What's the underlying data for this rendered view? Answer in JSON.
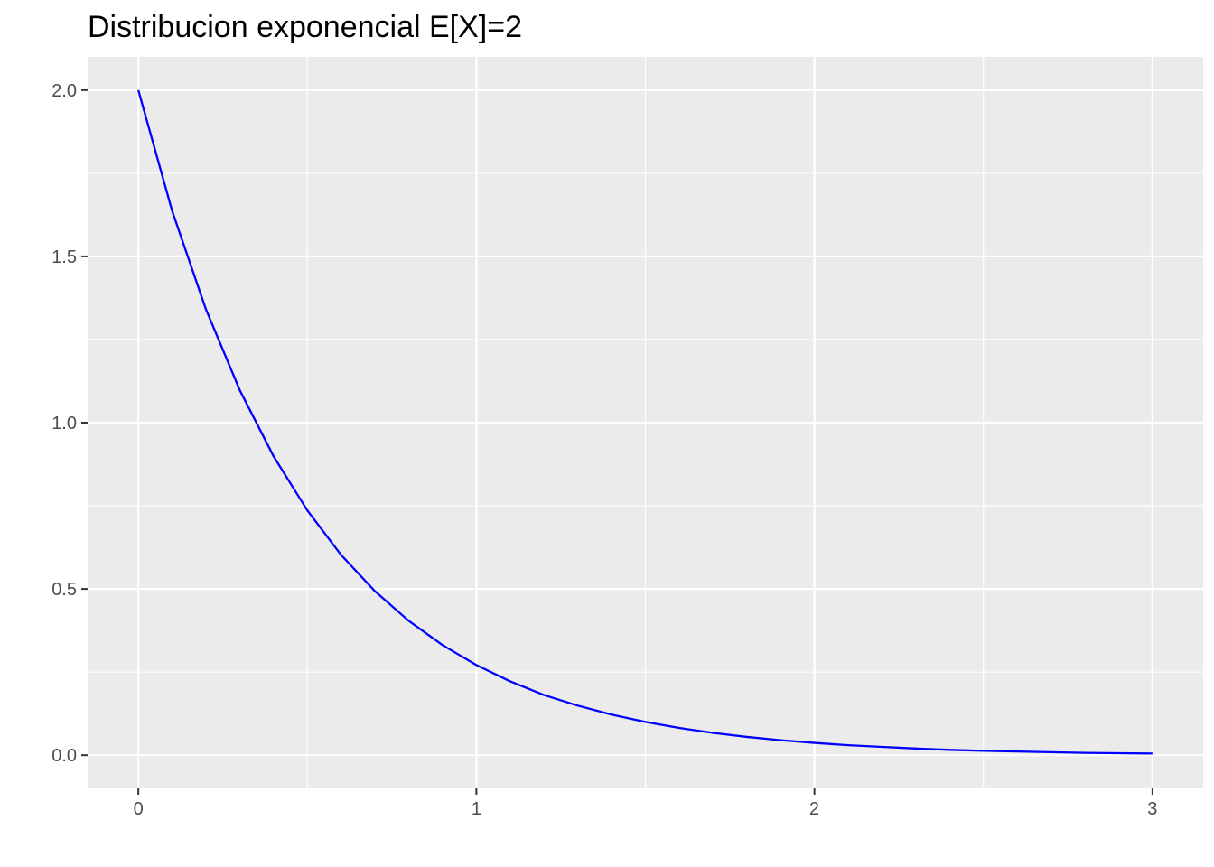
{
  "chart_data": {
    "type": "line",
    "title": "Distribucion exponencial E[X]=2",
    "xlabel": "",
    "ylabel": "",
    "xlim": [
      -0.15,
      3.15
    ],
    "ylim": [
      -0.1,
      2.1
    ],
    "x_ticks": [
      0,
      1,
      2,
      3
    ],
    "x_tick_labels": [
      "0",
      "1",
      "2",
      "3"
    ],
    "x_minor_ticks": [
      0.5,
      1.5,
      2.5
    ],
    "y_ticks": [
      0,
      0.5,
      1,
      1.5,
      2
    ],
    "y_tick_labels": [
      "0.0",
      "0.5",
      "1.0",
      "1.5",
      "2.0"
    ],
    "y_minor_ticks": [
      0.25,
      0.75,
      1.25,
      1.75
    ],
    "grid": true,
    "legend": "none",
    "colors": {
      "panel": "#ebebeb",
      "grid": "#ffffff",
      "line": "#0000ff",
      "axis_text": "#4d4d4d",
      "tick": "#333333"
    },
    "series": [
      {
        "x": [
          0.0,
          0.1,
          0.2,
          0.3,
          0.4,
          0.5,
          0.6,
          0.7,
          0.8,
          0.9,
          1.0,
          1.1,
          1.2,
          1.3,
          1.4,
          1.5,
          1.6,
          1.7,
          1.8,
          1.9,
          2.0,
          2.1,
          2.2,
          2.3,
          2.4,
          2.5,
          2.6,
          2.7,
          2.8,
          2.9,
          3.0
        ],
        "y": [
          2.0,
          1.637,
          1.341,
          1.098,
          0.899,
          0.736,
          0.602,
          0.493,
          0.404,
          0.331,
          0.271,
          0.222,
          0.181,
          0.149,
          0.122,
          0.1,
          0.082,
          0.067,
          0.055,
          0.045,
          0.037,
          0.03,
          0.025,
          0.02,
          0.016,
          0.013,
          0.011,
          0.009,
          0.007,
          0.006,
          0.005
        ]
      }
    ]
  }
}
